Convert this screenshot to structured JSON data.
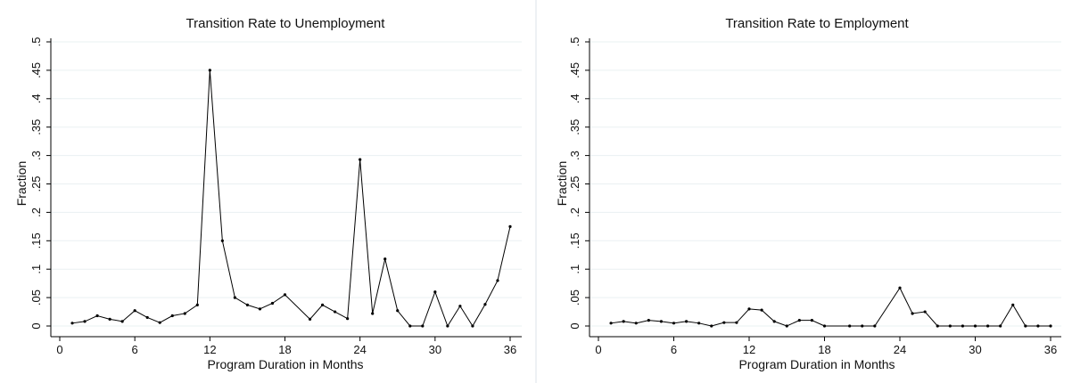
{
  "chart_data": [
    {
      "type": "line",
      "title": "Transition Rate to Unemployment",
      "xlabel": "Program Duration in Months",
      "ylabel": "Fraction",
      "xlim": [
        0,
        36
      ],
      "ylim": [
        0,
        0.5
      ],
      "xticks": [
        0,
        6,
        12,
        18,
        24,
        30,
        36
      ],
      "xtick_labels": [
        "0",
        "6",
        "12",
        "18",
        "24",
        "30",
        "36"
      ],
      "yticks": [
        0,
        0.05,
        0.1,
        0.15,
        0.2,
        0.25,
        0.3,
        0.35,
        0.4,
        0.45,
        0.5
      ],
      "ytick_labels": [
        "0",
        ".05",
        ".1",
        ".15",
        ".2",
        ".25",
        ".3",
        ".35",
        ".4",
        ".45",
        ".5"
      ],
      "grid": true,
      "line_color": "#000000",
      "x": [
        1,
        2,
        3,
        4,
        5,
        6,
        7,
        8,
        9,
        10,
        11,
        12,
        13,
        14,
        15,
        16,
        17,
        18,
        20,
        21,
        22,
        23,
        24,
        25,
        26,
        27,
        28,
        29,
        30,
        31,
        32,
        33,
        34,
        35,
        36
      ],
      "values": [
        0.005,
        0.008,
        0.018,
        0.012,
        0.008,
        0.027,
        0.015,
        0.006,
        0.018,
        0.022,
        0.037,
        0.45,
        0.15,
        0.05,
        0.037,
        0.03,
        0.04,
        0.055,
        0.012,
        0.037,
        0.025,
        0.013,
        0.293,
        0.022,
        0.118,
        0.027,
        0.0,
        0.0,
        0.06,
        0.0,
        0.035,
        0.0,
        0.038,
        0.08,
        0.175
      ]
    },
    {
      "type": "line",
      "title": "Transition Rate to Employment",
      "xlabel": "Program Duration in Months",
      "ylabel": "Fraction",
      "xlim": [
        0,
        36
      ],
      "ylim": [
        0,
        0.5
      ],
      "xticks": [
        0,
        6,
        12,
        18,
        24,
        30,
        36
      ],
      "xtick_labels": [
        "0",
        "6",
        "12",
        "18",
        "24",
        "30",
        "36"
      ],
      "yticks": [
        0,
        0.05,
        0.1,
        0.15,
        0.2,
        0.25,
        0.3,
        0.35,
        0.4,
        0.45,
        0.5
      ],
      "ytick_labels": [
        "0",
        ".05",
        ".1",
        ".15",
        ".2",
        ".25",
        ".3",
        ".35",
        ".4",
        ".45",
        ".5"
      ],
      "grid": true,
      "line_color": "#000000",
      "x": [
        1,
        2,
        3,
        4,
        5,
        6,
        7,
        8,
        9,
        10,
        11,
        12,
        13,
        14,
        15,
        16,
        17,
        18,
        20,
        21,
        22,
        24,
        25,
        26,
        27,
        28,
        29,
        30,
        31,
        32,
        33,
        34,
        35,
        36
      ],
      "values": [
        0.005,
        0.008,
        0.005,
        0.01,
        0.008,
        0.005,
        0.008,
        0.005,
        0.0,
        0.006,
        0.006,
        0.03,
        0.028,
        0.008,
        0.0,
        0.01,
        0.01,
        0.0,
        0.0,
        0.0,
        0.0,
        0.067,
        0.022,
        0.025,
        0.0,
        0.0,
        0.0,
        0.0,
        0.0,
        0.0,
        0.037,
        0.0,
        0.0,
        0.0
      ]
    }
  ]
}
